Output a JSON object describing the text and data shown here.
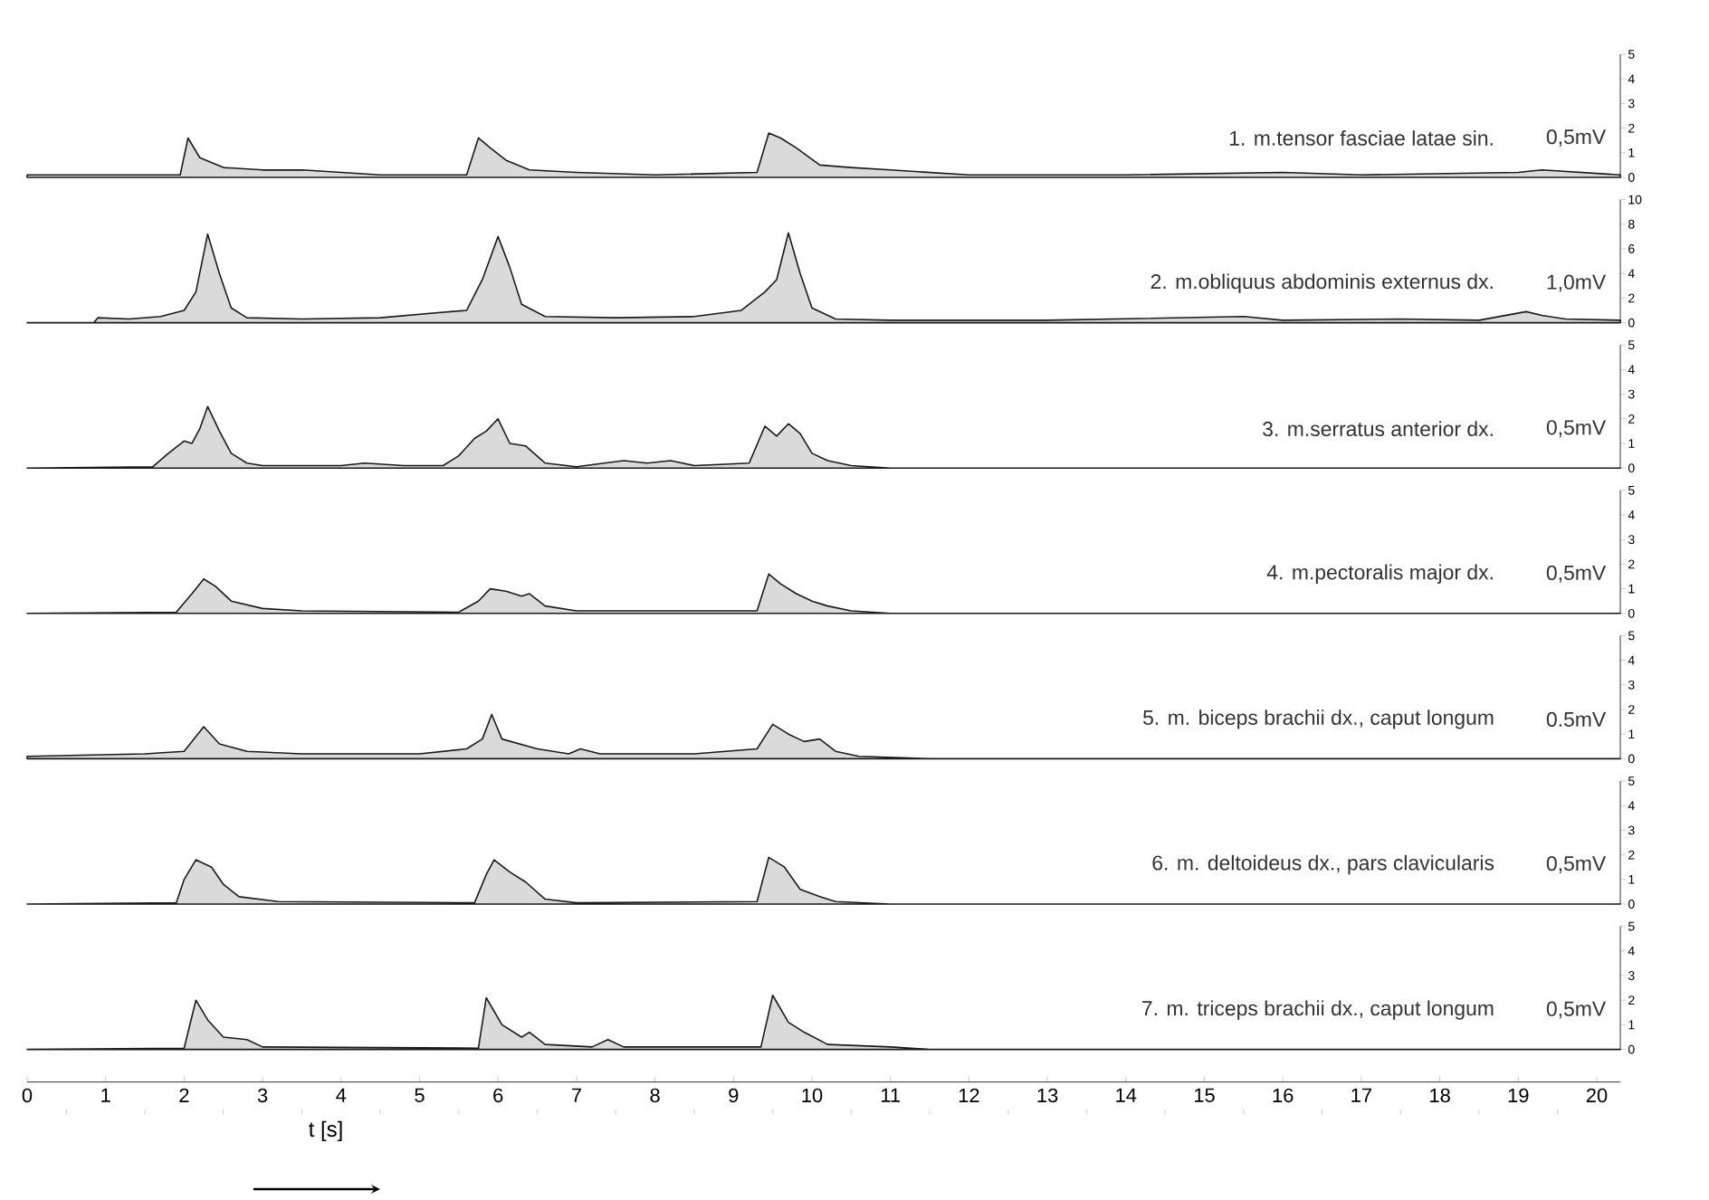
{
  "chart_data": [
    {
      "type": "area",
      "xlim": [
        0,
        20.3
      ],
      "ylim": [
        0,
        5
      ],
      "yticks": [
        0,
        1,
        2,
        3,
        4,
        5
      ],
      "tick_labels": "y",
      "annotations": [
        "1. m.tensor fasciae latae sin.",
        "0,5mV"
      ],
      "x": [
        0,
        1,
        1.95,
        2.05,
        2.2,
        2.5,
        3,
        3.5,
        4,
        4.5,
        5.6,
        5.75,
        5.9,
        6.1,
        6.4,
        7,
        8,
        9.3,
        9.45,
        9.6,
        9.8,
        10.1,
        10.5,
        11,
        12,
        14,
        16,
        17,
        19,
        19.3,
        20.3
      ],
      "series": [
        {
          "color": "#1a1a1a",
          "values": [
            0.1,
            0.1,
            0.1,
            1.6,
            0.8,
            0.4,
            0.3,
            0.3,
            0.2,
            0.1,
            0.1,
            1.6,
            1.2,
            0.7,
            0.3,
            0.2,
            0.1,
            0.2,
            1.8,
            1.6,
            1.2,
            0.5,
            0.4,
            0.3,
            0.1,
            0.1,
            0.2,
            0.1,
            0.2,
            0.3,
            0.1
          ]
        }
      ]
    },
    {
      "type": "area",
      "xlim": [
        0,
        20.3
      ],
      "ylim": [
        0,
        10
      ],
      "yticks": [
        0,
        2,
        4,
        6,
        8,
        10
      ],
      "tick_labels": "y",
      "annotations": [
        "2. m.obliquus abdominis externus dx.",
        "1,0mV"
      ],
      "x": [
        0,
        0.85,
        0.9,
        1.3,
        1.7,
        2.0,
        2.15,
        2.3,
        2.45,
        2.6,
        2.8,
        3.5,
        4.5,
        5.2,
        5.6,
        5.8,
        6.0,
        6.15,
        6.3,
        6.6,
        7.5,
        8.5,
        9.1,
        9.4,
        9.55,
        9.7,
        9.85,
        10.0,
        10.3,
        11,
        13,
        15.5,
        16,
        17.5,
        18.5,
        19.1,
        19.3,
        19.6,
        20.3
      ],
      "series": [
        {
          "color": "#1a1a1a",
          "values": [
            0,
            0,
            0.4,
            0.3,
            0.5,
            1.0,
            2.5,
            7.2,
            4,
            1.2,
            0.4,
            0.3,
            0.4,
            0.8,
            1.0,
            3.5,
            7.0,
            4.5,
            1.5,
            0.5,
            0.4,
            0.5,
            1.0,
            2.5,
            3.5,
            7.3,
            4,
            1.2,
            0.3,
            0.2,
            0.2,
            0.5,
            0.2,
            0.3,
            0.2,
            0.9,
            0.6,
            0.3,
            0.2
          ]
        }
      ]
    },
    {
      "type": "area",
      "xlim": [
        0,
        20.3
      ],
      "ylim": [
        0,
        5
      ],
      "yticks": [
        0,
        1,
        2,
        3,
        4,
        5
      ],
      "tick_labels": "y",
      "annotations": [
        "3. m.serratus anterior dx.",
        "0,5mV"
      ],
      "x": [
        0,
        1.6,
        1.8,
        2.0,
        2.1,
        2.2,
        2.3,
        2.45,
        2.6,
        2.8,
        3.0,
        4.0,
        4.3,
        4.8,
        5.3,
        5.5,
        5.7,
        5.85,
        6.0,
        6.15,
        6.35,
        6.6,
        7.0,
        7.6,
        7.9,
        8.2,
        8.5,
        9.2,
        9.4,
        9.55,
        9.7,
        9.85,
        10.0,
        10.2,
        10.5,
        11,
        20.3
      ],
      "series": [
        {
          "color": "#1a1a1a",
          "values": [
            0,
            0.05,
            0.6,
            1.1,
            1.0,
            1.6,
            2.5,
            1.5,
            0.6,
            0.2,
            0.1,
            0.1,
            0.2,
            0.1,
            0.1,
            0.5,
            1.2,
            1.5,
            2.0,
            1.0,
            0.9,
            0.2,
            0.05,
            0.3,
            0.2,
            0.3,
            0.1,
            0.2,
            1.7,
            1.3,
            1.8,
            1.4,
            0.6,
            0.3,
            0.1,
            0,
            0
          ]
        }
      ]
    },
    {
      "type": "area",
      "xlim": [
        0,
        20.3
      ],
      "ylim": [
        0,
        5
      ],
      "yticks": [
        0,
        1,
        2,
        3,
        4,
        5
      ],
      "tick_labels": "y",
      "annotations": [
        "4. m.pectoralis major dx.",
        "0,5mV"
      ],
      "x": [
        0,
        1.9,
        2.1,
        2.25,
        2.4,
        2.6,
        3.0,
        3.5,
        5.5,
        5.75,
        5.9,
        6.1,
        6.3,
        6.4,
        6.6,
        7,
        9.3,
        9.45,
        9.6,
        9.8,
        10.0,
        10.2,
        10.5,
        11,
        20.3
      ],
      "series": [
        {
          "color": "#1a1a1a",
          "values": [
            0,
            0.05,
            0.8,
            1.4,
            1.1,
            0.5,
            0.2,
            0.1,
            0.05,
            0.5,
            1.0,
            0.9,
            0.7,
            0.8,
            0.3,
            0.1,
            0.1,
            1.6,
            1.2,
            0.8,
            0.5,
            0.3,
            0.1,
            0,
            0
          ]
        }
      ]
    },
    {
      "type": "area",
      "xlim": [
        0,
        20.3
      ],
      "ylim": [
        0,
        5
      ],
      "yticks": [
        0,
        1,
        2,
        3,
        4,
        5
      ],
      "tick_labels": "y",
      "annotations": [
        "5. m. biceps brachii dx., caput longum",
        "0.5mV"
      ],
      "x": [
        0,
        1.5,
        2.0,
        2.25,
        2.45,
        2.8,
        3.5,
        5.0,
        5.6,
        5.8,
        5.92,
        6.05,
        6.5,
        6.9,
        7.05,
        7.3,
        8.5,
        9.3,
        9.5,
        9.7,
        9.9,
        10.1,
        10.3,
        10.6,
        11.5,
        20.3
      ],
      "series": [
        {
          "color": "#1a1a1a",
          "values": [
            0.1,
            0.2,
            0.3,
            1.3,
            0.6,
            0.3,
            0.2,
            0.2,
            0.4,
            0.8,
            1.8,
            0.8,
            0.4,
            0.2,
            0.4,
            0.2,
            0.2,
            0.4,
            1.4,
            1.0,
            0.7,
            0.8,
            0.3,
            0.1,
            0,
            0
          ]
        }
      ]
    },
    {
      "type": "area",
      "xlim": [
        0,
        20.3
      ],
      "ylim": [
        0,
        5
      ],
      "yticks": [
        0,
        1,
        2,
        3,
        4,
        5
      ],
      "tick_labels": "y",
      "annotations": [
        "6. m. deltoideus dx., pars clavicularis",
        "0,5mV"
      ],
      "x": [
        0,
        1.9,
        2.0,
        2.15,
        2.35,
        2.5,
        2.7,
        3.2,
        5.7,
        5.85,
        5.95,
        6.15,
        6.35,
        6.6,
        7,
        9.3,
        9.45,
        9.65,
        9.85,
        10.1,
        10.3,
        11,
        20.3
      ],
      "series": [
        {
          "color": "#1a1a1a",
          "values": [
            0,
            0.05,
            1.0,
            1.8,
            1.5,
            0.8,
            0.3,
            0.1,
            0.05,
            1.2,
            1.8,
            1.3,
            0.9,
            0.2,
            0.05,
            0.1,
            1.9,
            1.5,
            0.6,
            0.3,
            0.1,
            0,
            0
          ]
        }
      ]
    },
    {
      "type": "area",
      "xlim": [
        0,
        20.3
      ],
      "ylim": [
        0,
        5
      ],
      "yticks": [
        0,
        1,
        2,
        3,
        4,
        5
      ],
      "xticks": [
        0,
        1,
        2,
        3,
        4,
        5,
        6,
        7,
        8,
        9,
        10,
        11,
        12,
        13,
        14,
        15,
        16,
        17,
        18,
        19,
        20
      ],
      "xlabel": "t [s]",
      "annotations": [
        "7. m. triceps brachii dx., caput longum",
        "0,5mV"
      ],
      "x": [
        0,
        2.0,
        2.15,
        2.3,
        2.5,
        2.8,
        3.0,
        5.75,
        5.85,
        6.05,
        6.3,
        6.4,
        6.6,
        7.2,
        7.4,
        7.6,
        9.35,
        9.5,
        9.7,
        9.9,
        10.2,
        11,
        11.5,
        20.3
      ],
      "series": [
        {
          "color": "#1a1a1a",
          "values": [
            0,
            0.05,
            2.0,
            1.2,
            0.5,
            0.4,
            0.1,
            0.05,
            2.1,
            1.0,
            0.5,
            0.7,
            0.2,
            0.1,
            0.4,
            0.1,
            0.1,
            2.2,
            1.1,
            0.7,
            0.2,
            0.1,
            0,
            0
          ]
        }
      ]
    }
  ]
}
